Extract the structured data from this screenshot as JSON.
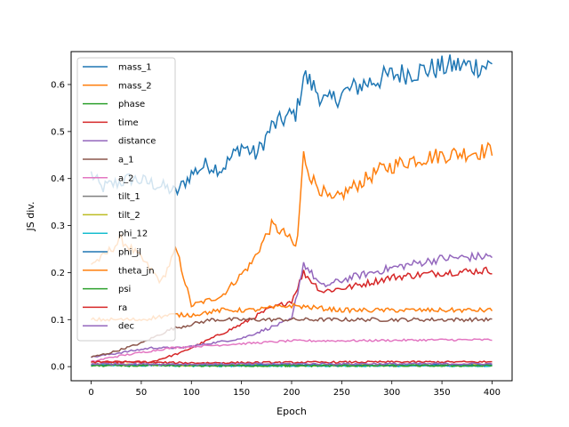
{
  "chart_data": {
    "type": "line",
    "xlabel": "Epoch",
    "ylabel": "JS div.",
    "xlim": [
      -20,
      420
    ],
    "ylim": [
      -0.03,
      0.67
    ],
    "xticks": [
      0,
      50,
      100,
      150,
      200,
      250,
      300,
      350,
      400
    ],
    "yticks": [
      0.0,
      0.1,
      0.2,
      0.3,
      0.4,
      0.5,
      0.6
    ],
    "ytick_labels": [
      "0.0",
      "0.1",
      "0.2",
      "0.3",
      "0.4",
      "0.5",
      "0.6"
    ],
    "grid": false,
    "legend_position": "top-left",
    "series": [
      {
        "name": "mass_1",
        "color": "#1f77b4",
        "x": [
          0,
          10,
          25,
          40,
          60,
          75,
          85,
          100,
          115,
          130,
          150,
          165,
          180,
          195,
          205,
          212,
          220,
          235,
          250,
          270,
          300,
          330,
          360,
          400
        ],
        "values": [
          0.41,
          0.38,
          0.39,
          0.4,
          0.39,
          0.38,
          0.37,
          0.41,
          0.43,
          0.42,
          0.47,
          0.45,
          0.51,
          0.53,
          0.54,
          0.62,
          0.6,
          0.56,
          0.58,
          0.6,
          0.62,
          0.63,
          0.64,
          0.64
        ]
      },
      {
        "name": "mass_2",
        "color": "#ff7f0e",
        "x": [
          0,
          10,
          30,
          50,
          70,
          85,
          100,
          130,
          160,
          180,
          195,
          205,
          212,
          220,
          240,
          260,
          290,
          320,
          350,
          400
        ],
        "values": [
          0.22,
          0.23,
          0.27,
          0.23,
          0.18,
          0.25,
          0.13,
          0.15,
          0.22,
          0.3,
          0.28,
          0.25,
          0.45,
          0.4,
          0.35,
          0.38,
          0.42,
          0.44,
          0.45,
          0.46
        ]
      },
      {
        "name": "phase",
        "color": "#2ca02c",
        "x": [
          0,
          100,
          200,
          300,
          400
        ],
        "values": [
          0.003,
          0.003,
          0.002,
          0.002,
          0.002
        ]
      },
      {
        "name": "time",
        "color": "#d62728",
        "x": [
          0,
          30,
          60,
          90,
          120,
          150,
          175,
          200,
          212,
          230,
          260,
          300,
          350,
          400
        ],
        "values": [
          0.01,
          0.01,
          0.01,
          0.03,
          0.06,
          0.09,
          0.12,
          0.14,
          0.2,
          0.16,
          0.17,
          0.19,
          0.2,
          0.205
        ]
      },
      {
        "name": "distance",
        "color": "#9467bd",
        "x": [
          0,
          30,
          60,
          90,
          120,
          150,
          175,
          200,
          212,
          230,
          260,
          300,
          350,
          400
        ],
        "values": [
          0.02,
          0.03,
          0.04,
          0.04,
          0.05,
          0.06,
          0.08,
          0.1,
          0.22,
          0.17,
          0.19,
          0.21,
          0.23,
          0.235
        ]
      },
      {
        "name": "a_1",
        "color": "#8c564b",
        "x": [
          0,
          20,
          50,
          80,
          120,
          160,
          200,
          250,
          300,
          350,
          400
        ],
        "values": [
          0.02,
          0.03,
          0.05,
          0.08,
          0.1,
          0.1,
          0.1,
          0.1,
          0.1,
          0.1,
          0.1
        ]
      },
      {
        "name": "a_2",
        "color": "#e377c2",
        "x": [
          0,
          20,
          50,
          80,
          120,
          160,
          200,
          250,
          300,
          350,
          400
        ],
        "values": [
          0.01,
          0.02,
          0.03,
          0.04,
          0.045,
          0.05,
          0.055,
          0.055,
          0.056,
          0.057,
          0.057
        ]
      },
      {
        "name": "tilt_1",
        "color": "#7f7f7f",
        "x": [
          0,
          100,
          200,
          300,
          400
        ],
        "values": [
          0.005,
          0.004,
          0.004,
          0.003,
          0.003
        ]
      },
      {
        "name": "tilt_2",
        "color": "#bcbd22",
        "x": [
          0,
          100,
          200,
          300,
          400
        ],
        "values": [
          0.004,
          0.003,
          0.003,
          0.003,
          0.003
        ]
      },
      {
        "name": "phi_12",
        "color": "#17becf",
        "x": [
          0,
          100,
          200,
          300,
          400
        ],
        "values": [
          0.003,
          0.002,
          0.002,
          0.002,
          0.002
        ]
      },
      {
        "name": "phi_jl",
        "color": "#1f77b4",
        "x": [
          0,
          100,
          200,
          300,
          400
        ],
        "values": [
          0.004,
          0.003,
          0.003,
          0.003,
          0.003
        ]
      },
      {
        "name": "theta_jn",
        "color": "#ff7f0e",
        "x": [
          0,
          20,
          50,
          80,
          100,
          130,
          160,
          200,
          250,
          300,
          350,
          400
        ],
        "values": [
          0.1,
          0.1,
          0.1,
          0.11,
          0.11,
          0.12,
          0.12,
          0.13,
          0.12,
          0.12,
          0.12,
          0.12
        ]
      },
      {
        "name": "psi",
        "color": "#2ca02c",
        "x": [
          0,
          100,
          200,
          300,
          400
        ],
        "values": [
          0.002,
          0.002,
          0.002,
          0.002,
          0.002
        ]
      },
      {
        "name": "ra",
        "color": "#d62728",
        "x": [
          0,
          100,
          200,
          300,
          400
        ],
        "values": [
          0.01,
          0.008,
          0.009,
          0.01,
          0.01
        ]
      },
      {
        "name": "dec",
        "color": "#9467bd",
        "x": [
          0,
          100,
          200,
          300,
          400
        ],
        "values": [
          0.006,
          0.005,
          0.006,
          0.006,
          0.006
        ]
      }
    ]
  }
}
